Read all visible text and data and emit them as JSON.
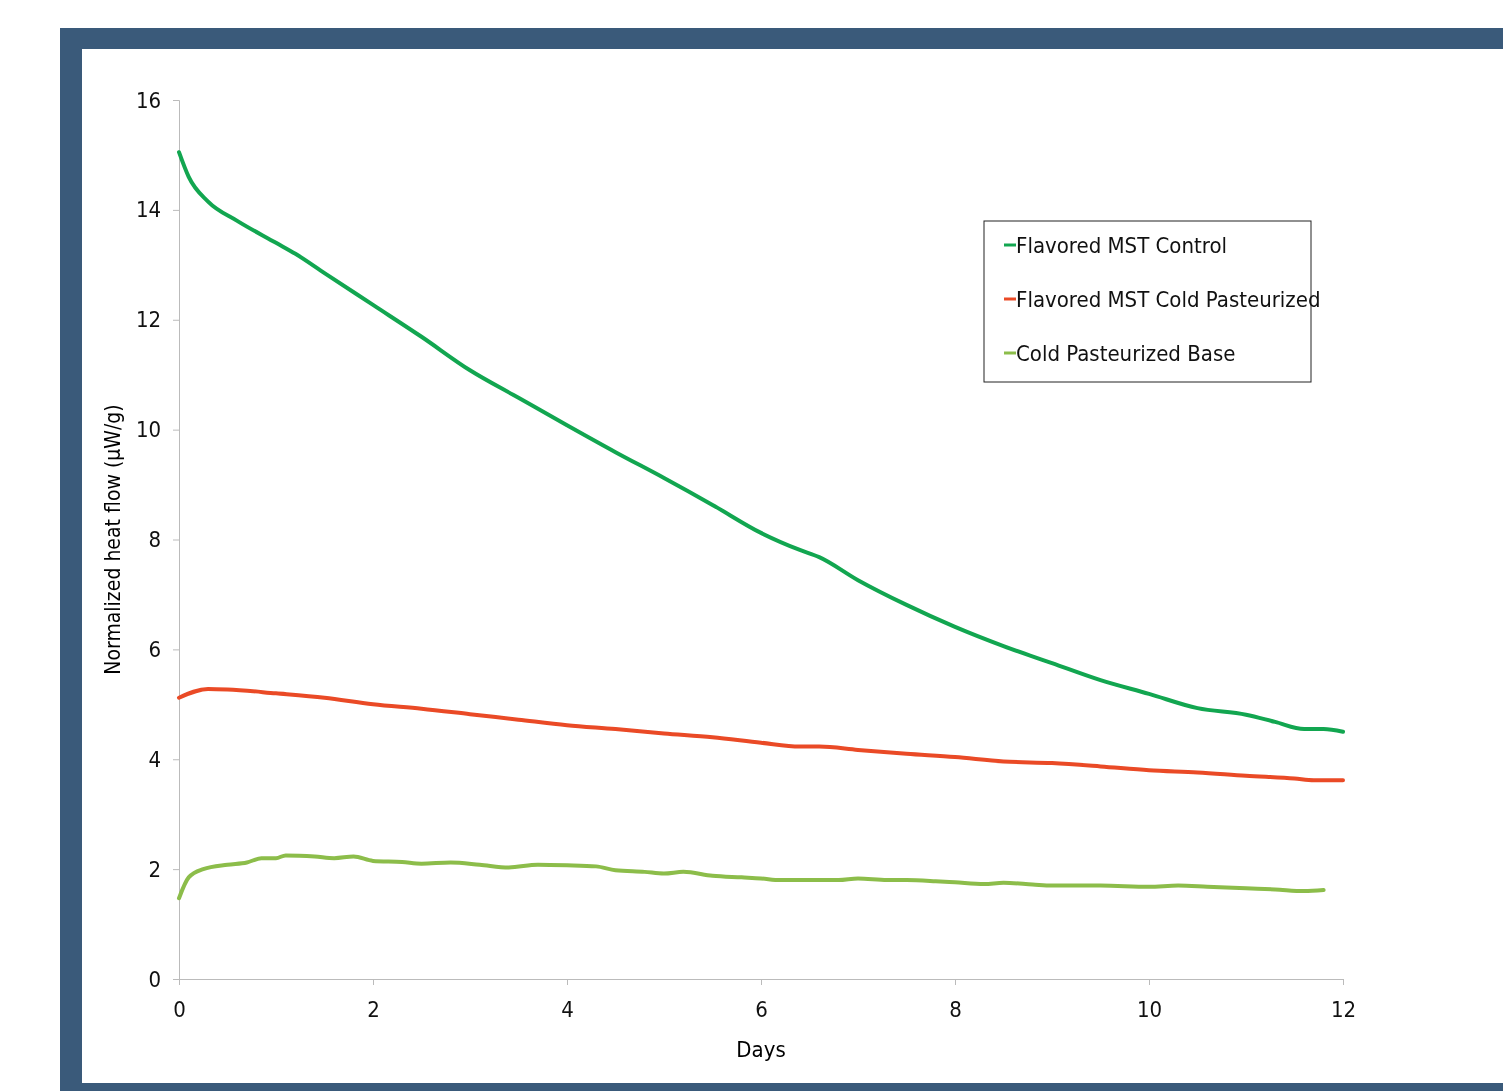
{
  "chart_data": {
    "type": "line",
    "xlabel": "Days",
    "ylabel": "Normalized heat flow (μW/g)",
    "xlim": [
      0,
      12
    ],
    "ylim": [
      0,
      16
    ],
    "xticks": [
      0,
      2,
      4,
      6,
      8,
      10,
      12
    ],
    "yticks": [
      0,
      2,
      4,
      6,
      8,
      10,
      12,
      14,
      16
    ],
    "grid": false,
    "legend": "top right",
    "marker": "none",
    "line_style": "solid",
    "series": [
      {
        "name": "Flavored MST Control",
        "color": "#12a650",
        "x": [
          0,
          0.1,
          0.3,
          0.6,
          1,
          1.2,
          1.5,
          2,
          2.5,
          3,
          3.5,
          4,
          4.5,
          5,
          5.5,
          6,
          6.4,
          6.6,
          7,
          7.5,
          8,
          8.5,
          9,
          9.5,
          10,
          10.5,
          11,
          11.3,
          11.6,
          11.8,
          12
        ],
        "values": [
          15.05,
          14.6,
          14.15,
          13.8,
          13.4,
          13.2,
          12.85,
          12.27,
          11.69,
          11.08,
          10.58,
          10.08,
          9.59,
          9.12,
          8.63,
          8.12,
          7.81,
          7.68,
          7.26,
          6.81,
          6.41,
          6.06,
          5.75,
          5.44,
          5.19,
          4.93,
          4.81,
          4.68,
          4.55,
          4.55,
          4.5
        ]
      },
      {
        "name": "Flavored MST Cold Pasteurized",
        "color": "#ea4a26",
        "x": [
          0,
          0.3,
          0.5,
          1,
          1.5,
          2,
          2.5,
          3,
          3.5,
          4,
          4.5,
          5,
          5.5,
          6,
          6.4,
          6.6,
          7,
          7.5,
          8,
          8.5,
          9,
          9.5,
          10,
          10.5,
          11,
          11.5,
          11.7,
          12
        ],
        "values": [
          5.12,
          5.28,
          5.27,
          5.2,
          5.12,
          5.0,
          4.92,
          4.82,
          4.72,
          4.62,
          4.55,
          4.47,
          4.4,
          4.3,
          4.23,
          4.23,
          4.17,
          4.1,
          4.04,
          3.96,
          3.93,
          3.87,
          3.8,
          3.76,
          3.7,
          3.65,
          3.62,
          3.62
        ]
      },
      {
        "name": "Cold Pasteurized Base",
        "color": "#8cbd4a",
        "x": [
          0,
          0.1,
          0.25,
          0.5,
          0.7,
          0.85,
          1,
          1.1,
          1.4,
          1.6,
          1.8,
          2,
          2.3,
          2.5,
          2.8,
          3.1,
          3.4,
          3.7,
          4,
          4.3,
          4.5,
          4.8,
          5,
          5.2,
          5.5,
          5.8,
          6,
          6.2,
          6.5,
          6.8,
          7,
          7.3,
          7.5,
          7.8,
          8,
          8.3,
          8.5,
          8.8,
          9,
          9.5,
          10,
          10.3,
          10.6,
          11,
          11.3,
          11.6,
          11.8
        ],
        "values": [
          1.47,
          1.85,
          2.0,
          2.08,
          2.12,
          2.2,
          2.2,
          2.25,
          2.23,
          2.2,
          2.23,
          2.15,
          2.13,
          2.1,
          2.12,
          2.08,
          2.03,
          2.08,
          2.07,
          2.05,
          1.98,
          1.95,
          1.92,
          1.95,
          1.88,
          1.85,
          1.83,
          1.8,
          1.8,
          1.8,
          1.83,
          1.8,
          1.8,
          1.78,
          1.76,
          1.73,
          1.75,
          1.72,
          1.7,
          1.7,
          1.68,
          1.7,
          1.68,
          1.65,
          1.63,
          1.6,
          1.62
        ]
      }
    ]
  }
}
